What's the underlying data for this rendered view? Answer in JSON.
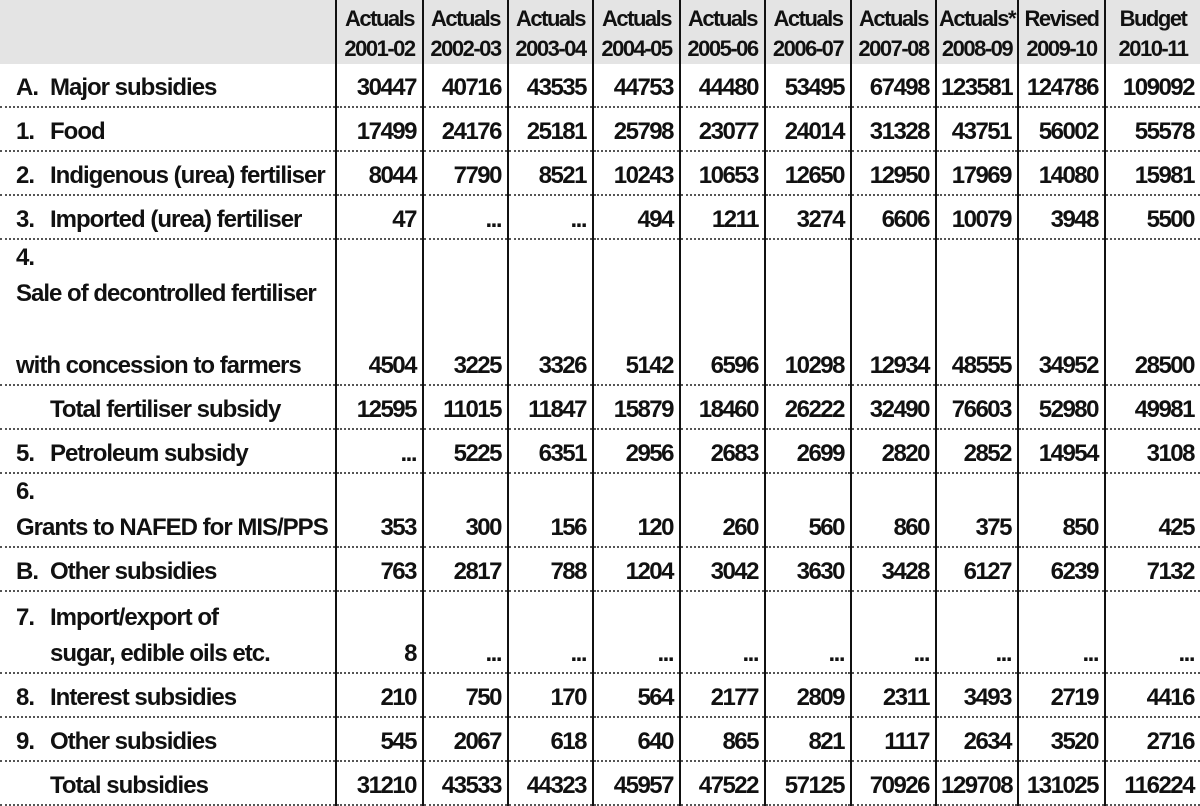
{
  "columns": [
    {
      "type": "Actuals",
      "year": "2001-02"
    },
    {
      "type": "Actuals",
      "year": "2002-03"
    },
    {
      "type": "Actuals",
      "year": "2003-04"
    },
    {
      "type": "Actuals",
      "year": "2004-05"
    },
    {
      "type": "Actuals",
      "year": "2005-06"
    },
    {
      "type": "Actuals",
      "year": "2006-07"
    },
    {
      "type": "Actuals",
      "year": "2007-08"
    },
    {
      "type": "Actuals*",
      "year": "2008-09"
    },
    {
      "type": "Revised",
      "year": "2009-10"
    },
    {
      "type": "Budget",
      "year": "2010-11"
    }
  ],
  "rows": [
    {
      "num": "A.",
      "label": "Major subsidies",
      "values": [
        "30447",
        "40716",
        "43535",
        "44753",
        "44480",
        "53495",
        "67498",
        "123581",
        "124786",
        "109092"
      ]
    },
    {
      "num": "1.",
      "label": "Food",
      "values": [
        "17499",
        "24176",
        "25181",
        "25798",
        "23077",
        "24014",
        "31328",
        "43751",
        "56002",
        "55578"
      ]
    },
    {
      "num": "2.",
      "label": "Indigenous (urea) fertiliser",
      "values": [
        "8044",
        "7790",
        "8521",
        "10243",
        "10653",
        "12650",
        "12950",
        "17969",
        "14080",
        "15981"
      ]
    },
    {
      "num": "3.",
      "label": "Imported (urea) fertiliser",
      "values": [
        "47",
        "...",
        "...",
        "494",
        "1211",
        "3274",
        "6606",
        "10079",
        "3948",
        "5500"
      ]
    },
    {
      "num": "4.",
      "label": "Sale of decontrolled fertiliser",
      "label2": "with concession to farmers",
      "values": [
        "4504",
        "3225",
        "3326",
        "5142",
        "6596",
        "10298",
        "12934",
        "48555",
        "34952",
        "28500"
      ]
    },
    {
      "num": "",
      "label": "Total fertiliser subsidy",
      "values": [
        "12595",
        "11015",
        "11847",
        "15879",
        "18460",
        "26222",
        "32490",
        "76603",
        "52980",
        "49981"
      ]
    },
    {
      "num": "5.",
      "label": "Petroleum subsidy",
      "values": [
        "...",
        "5225",
        "6351",
        "2956",
        "2683",
        "2699",
        "2820",
        "2852",
        "14954",
        "3108"
      ]
    },
    {
      "num": "6.",
      "label": "Grants to NAFED for MIS/PPS",
      "values": [
        "353",
        "300",
        "156",
        "120",
        "260",
        "560",
        "860",
        "375",
        "850",
        "425"
      ]
    },
    {
      "num": "B.",
      "label": "Other subsidies",
      "values": [
        "763",
        "2817",
        "788",
        "1204",
        "3042",
        "3630",
        "3428",
        "6127",
        "6239",
        "7132"
      ]
    },
    {
      "num": "7.",
      "label": "Import/export of",
      "label2": "sugar, edible oils etc.",
      "values": [
        "8",
        "...",
        "...",
        "...",
        "...",
        "...",
        "...",
        "...",
        "...",
        "..."
      ]
    },
    {
      "num": "8.",
      "label": "Interest subsidies",
      "values": [
        "210",
        "750",
        "170",
        "564",
        "2177",
        "2809",
        "2311",
        "3493",
        "2719",
        "4416"
      ]
    },
    {
      "num": "9.",
      "label": "Other subsidies",
      "values": [
        "545",
        "2067",
        "618",
        "640",
        "865",
        "821",
        "1117",
        "2634",
        "3520",
        "2716"
      ]
    },
    {
      "num": "",
      "label": "Total subsidies",
      "values": [
        "31210",
        "43533",
        "44323",
        "45957",
        "47522",
        "57125",
        "70926",
        "129708",
        "131025",
        "116224"
      ]
    }
  ]
}
